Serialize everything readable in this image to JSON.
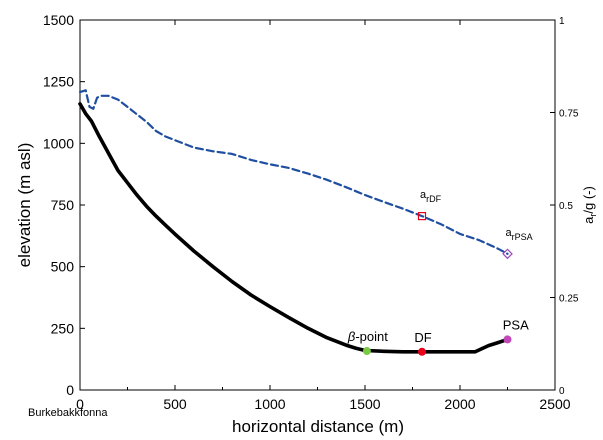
{
  "chart_data": {
    "type": "line",
    "title": "",
    "xlabel": "horizontal distance (m)",
    "ylabel": "elevation (m asl)",
    "y2label": {
      "main": "a",
      "sub": "r",
      "rest": "/g (-)"
    },
    "xlim": [
      0,
      2500
    ],
    "ylim": [
      0,
      1500
    ],
    "y2lim": [
      0,
      1
    ],
    "xticks": [
      0,
      500,
      1000,
      1500,
      2000,
      2500
    ],
    "xtick_labels": [
      "0",
      "500",
      "1000",
      "1500",
      "2000",
      "2500"
    ],
    "yticks": [
      0,
      250,
      500,
      750,
      1000,
      1250,
      1500
    ],
    "ytick_labels": [
      "0",
      "250",
      "500",
      "750",
      "1000",
      "1250",
      "1500"
    ],
    "y2ticks": [
      0,
      0.25,
      0.5,
      0.75,
      1
    ],
    "y2tick_labels": [
      "0",
      "0.25",
      "0.5",
      "0.75",
      "1"
    ],
    "origin_label": "Burkebakkfonna",
    "grid": false,
    "series": [
      {
        "style": "solid",
        "color": "#000000",
        "axis": "left",
        "x": [
          0,
          30,
          60,
          100,
          150,
          200,
          250,
          300,
          350,
          400,
          450,
          500,
          600,
          700,
          800,
          900,
          1000,
          1100,
          1200,
          1300,
          1400,
          1450,
          1500,
          1600,
          1700,
          1800,
          1900,
          2000,
          2080,
          2100,
          2150,
          2200,
          2250
        ],
        "y": [
          1160,
          1120,
          1090,
          1030,
          960,
          890,
          840,
          790,
          745,
          705,
          668,
          632,
          563,
          500,
          440,
          385,
          338,
          293,
          250,
          212,
          182,
          170,
          160,
          157,
          155,
          155,
          155,
          155,
          155,
          162,
          180,
          192,
          205
        ]
      },
      {
        "style": "dashed",
        "color": "#1f4fa0",
        "axis": "right",
        "x": [
          0,
          30,
          50,
          70,
          90,
          110,
          150,
          200,
          250,
          300,
          350,
          400,
          450,
          500,
          600,
          700,
          800,
          900,
          1000,
          1100,
          1200,
          1300,
          1400,
          1500,
          1600,
          1700,
          1800,
          1900,
          2000,
          2100,
          2200,
          2250
        ],
        "y": [
          0.805,
          0.81,
          0.765,
          0.76,
          0.79,
          0.795,
          0.795,
          0.785,
          0.765,
          0.745,
          0.725,
          0.7,
          0.685,
          0.675,
          0.655,
          0.645,
          0.638,
          0.622,
          0.61,
          0.6,
          0.585,
          0.568,
          0.548,
          0.527,
          0.508,
          0.49,
          0.47,
          0.448,
          0.422,
          0.405,
          0.382,
          0.368
        ]
      }
    ],
    "points": [
      {
        "name": "beta-point",
        "label_sym": "β",
        "label": "-point",
        "x": 1510,
        "y": 158,
        "color": "#7ac943",
        "label_x": 1410
      },
      {
        "name": "DF",
        "label": "DF",
        "x": 1800,
        "y": 155,
        "color": "#e8001c",
        "label_x": 1760
      },
      {
        "name": "PSA",
        "label": "PSA",
        "x": 2250,
        "y": 205,
        "color": "#c048b8",
        "label_x": 2225
      }
    ],
    "annotations": [
      {
        "name": "a-rDF",
        "main": "a",
        "sub": "rDF",
        "x": 1800,
        "y2": 0.47,
        "marker": "square",
        "marker_color": "#e8001c"
      },
      {
        "name": "a-rPSA",
        "main": "a",
        "sub": "rPSA",
        "x": 2250,
        "y2": 0.368,
        "marker": "diamond",
        "marker_color": "#9a4bb8"
      }
    ]
  }
}
